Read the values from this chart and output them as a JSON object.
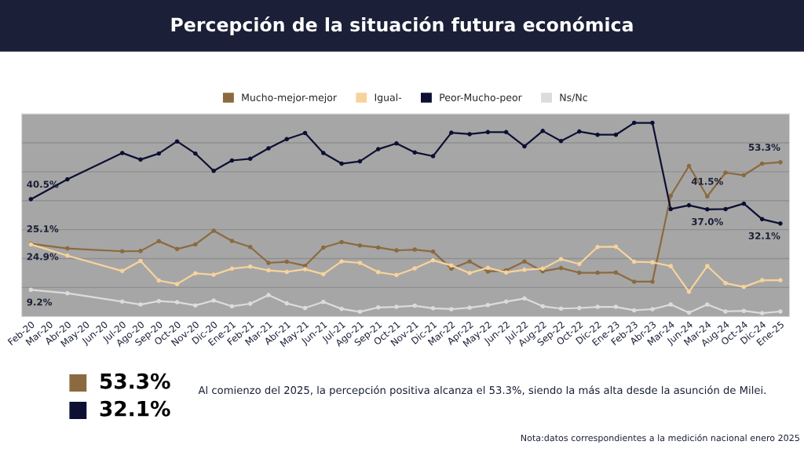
{
  "chart_data": {
    "type": "line",
    "title": "Percepción de la situación futura económica",
    "categories": [
      "Feb-20",
      "Mar-20",
      "Abr-20",
      "May-20",
      "Jun-20",
      "Jul-20",
      "Ago-20",
      "Sep-20",
      "Oct-20",
      "Nov-20",
      "Dic-20",
      "Ene-21",
      "Feb-21",
      "Mar-21",
      "Abr-21",
      "May-21",
      "Jun-21",
      "Jul-21",
      "Ago-21",
      "Sep-21",
      "Oct-21",
      "Nov-21",
      "Dic-21",
      "Mar-22",
      "Apr-22",
      "May-22",
      "Jun-22",
      "Jul-22",
      "Aug-22",
      "Sep-22",
      "Oct-22",
      "Dic-22",
      "Ene-23",
      "Feb-23",
      "Abr-23",
      "Mar-24",
      "Jun-24",
      "Mar-24",
      "Aug-24",
      "Oct-24",
      "Dic-24",
      "Ene-25"
    ],
    "series": [
      {
        "name": "Mucho-mejor-mejor",
        "color": "#8c6a3f",
        "values": [
          25.1,
          null,
          23.5,
          null,
          null,
          22.5,
          22.6,
          26.0,
          23.3,
          24.9,
          29.6,
          26.1,
          24.0,
          18.5,
          18.9,
          17.5,
          23.8,
          25.7,
          24.5,
          23.8,
          22.8,
          23.1,
          22.4,
          16.5,
          19.0,
          15.5,
          15.9,
          19.0,
          15.6,
          16.7,
          15.1,
          15.1,
          15.2,
          12.0,
          12.0,
          41.7,
          52.0,
          41.5,
          49.7,
          48.8,
          52.8,
          53.3
        ],
        "value_labels": [
          "25.1%",
          null,
          null,
          null,
          null,
          null,
          null,
          null,
          null,
          null,
          null,
          null,
          null,
          null,
          null,
          null,
          null,
          null,
          null,
          null,
          null,
          null,
          null,
          null,
          null,
          null,
          null,
          null,
          null,
          null,
          null,
          null,
          null,
          null,
          null,
          null,
          null,
          "41.5%",
          null,
          null,
          null,
          "53.3%"
        ]
      },
      {
        "name": "Igual-",
        "color": "#f7d39c",
        "values": [
          24.9,
          null,
          21.0,
          null,
          null,
          15.7,
          19.2,
          12.4,
          11.2,
          14.9,
          14.4,
          16.5,
          17.2,
          15.9,
          15.4,
          16.3,
          14.6,
          19.0,
          18.5,
          15.3,
          14.3,
          16.6,
          19.4,
          17.6,
          15.0,
          16.8,
          15.2,
          16.1,
          16.5,
          19.8,
          18.1,
          24.0,
          24.1,
          18.9,
          18.7,
          17.4,
          8.5,
          17.4,
          11.5,
          10.2,
          12.5,
          12.5
        ],
        "value_labels": [
          "24.9%",
          null,
          null,
          null,
          null,
          null,
          null,
          null,
          null,
          null,
          null,
          null,
          null,
          null,
          null,
          null,
          null,
          null,
          null,
          null,
          null,
          null,
          null,
          null,
          null,
          null,
          null,
          null,
          null,
          null,
          null,
          null,
          null,
          null,
          null,
          null,
          null,
          null,
          null,
          null,
          null,
          null
        ]
      },
      {
        "name": "Peor-Mucho-peor",
        "color": "#0d1033",
        "values": [
          40.5,
          null,
          47.4,
          null,
          null,
          56.5,
          54.2,
          56.3,
          60.5,
          56.3,
          50.3,
          53.9,
          54.5,
          58.1,
          61.3,
          63.4,
          56.5,
          52.8,
          53.6,
          57.8,
          59.8,
          56.7,
          55.4,
          63.5,
          63.0,
          63.7,
          63.7,
          58.8,
          64.1,
          60.6,
          63.9,
          62.8,
          62.8,
          66.9,
          66.9,
          37.1,
          38.4,
          37.0,
          37.1,
          39.0,
          33.6,
          32.1
        ],
        "value_labels": [
          "40.5%",
          null,
          null,
          null,
          null,
          null,
          null,
          null,
          null,
          null,
          null,
          null,
          null,
          null,
          null,
          null,
          null,
          null,
          null,
          null,
          null,
          null,
          null,
          null,
          null,
          null,
          null,
          null,
          null,
          null,
          null,
          null,
          null,
          null,
          null,
          null,
          null,
          "37.0%",
          null,
          null,
          null,
          "32.1%"
        ]
      },
      {
        "name": "Ns/Nc",
        "color": "#dcdcdc",
        "values": [
          9.2,
          null,
          8.0,
          null,
          null,
          5.1,
          4.1,
          5.3,
          4.9,
          3.8,
          5.5,
          3.5,
          4.4,
          7.4,
          4.5,
          2.9,
          5.0,
          2.6,
          1.6,
          3.1,
          3.3,
          3.7,
          2.8,
          2.5,
          3.0,
          3.9,
          5.1,
          6.2,
          3.5,
          2.7,
          2.9,
          3.3,
          3.3,
          2.1,
          2.5,
          4.1,
          1.3,
          4.1,
          1.7,
          1.9,
          1.1,
          1.7
        ],
        "value_labels": [
          "9.2%",
          null,
          null,
          null,
          null,
          null,
          null,
          null,
          null,
          null,
          null,
          null,
          null,
          null,
          null,
          null,
          null,
          null,
          null,
          null,
          null,
          null,
          null,
          null,
          null,
          null,
          null,
          null,
          null,
          null,
          null,
          null,
          null,
          null,
          null,
          null,
          null,
          null,
          null,
          null,
          null,
          null
        ]
      }
    ],
    "ylim": [
      0,
      70
    ],
    "yticks": [
      {
        "value": 0,
        "label": null
      },
      {
        "value": 10,
        "label": null
      },
      {
        "value": 20,
        "label": null
      },
      {
        "value": 30,
        "label": null
      },
      {
        "value": 40,
        "label": null
      },
      {
        "value": 50,
        "label": null
      },
      {
        "value": 60,
        "label": null
      },
      {
        "value": 70,
        "label": null
      }
    ],
    "tick_labels": "x",
    "grid": "y",
    "legend": "top",
    "marker": "circle",
    "line_style": "solid",
    "annotations": [
      "53.3%",
      "32.1%",
      "Al comienzo del 2025, la percepción positiva alcanza el 53.3%, siendo la más alta desde la asunción de Milei.",
      "Nota:datos correspondientes a la medición nacional enero 2025"
    ]
  }
}
